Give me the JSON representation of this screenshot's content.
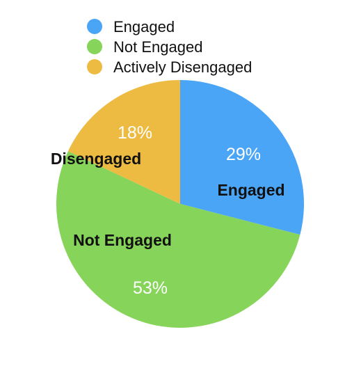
{
  "chart_data": {
    "type": "pie",
    "categories": [
      "Engaged",
      "Not Engaged",
      "Actively Disengaged"
    ],
    "values": [
      29,
      53,
      18
    ],
    "percent_labels": [
      "29%",
      "53%",
      "18%"
    ],
    "slice_labels": [
      "Engaged",
      "Not Engaged",
      "Disengaged"
    ],
    "colors": [
      "#4ba5f7",
      "#86d45a",
      "#edbb42"
    ],
    "legend": {
      "position": "top",
      "entries": [
        "Engaged",
        "Not Engaged",
        "Actively Disengaged"
      ]
    }
  }
}
